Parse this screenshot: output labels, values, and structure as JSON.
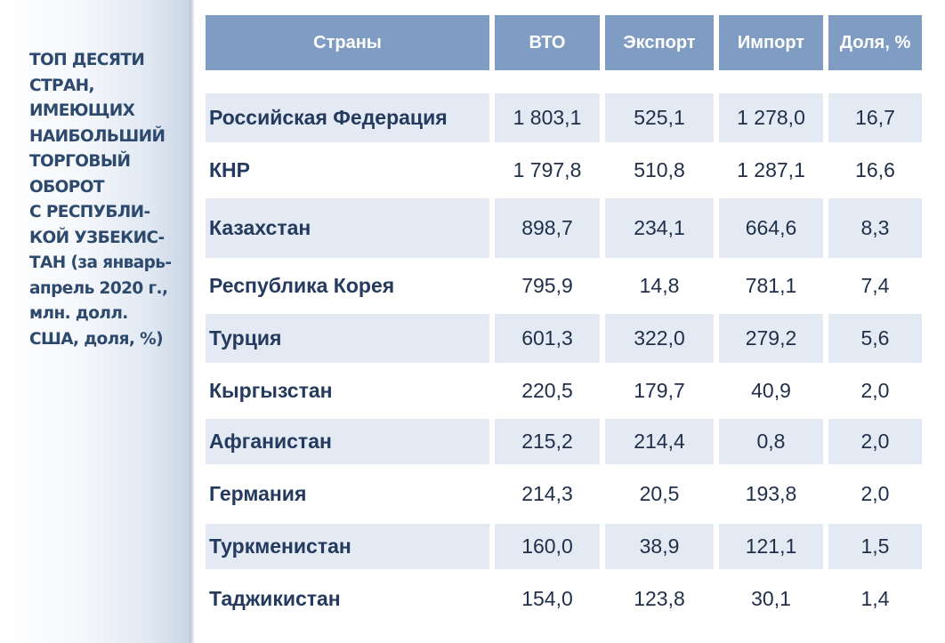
{
  "sidebar": {
    "title": "ТОП ДЕСЯТИ\nСТРАН,\nИМЕЮЩИХ\nНАИБОЛЬШИЙ\nТОРГОВЫЙ\nОБОРОТ\nС РЕСПУБЛИ-\nКОЙ УЗБЕКИС-\nТАН (за январь-\nапрель 2020 г.,\nмлн. долл.\nСША, доля, %)"
  },
  "table": {
    "headers": [
      "Страны",
      "ВТО",
      "Экспорт",
      "Импорт",
      "Доля, %"
    ],
    "rows": [
      {
        "country": "Российская Федерация",
        "vto": "1 803,1",
        "export": "525,1",
        "import": "1 278,0",
        "share": "16,7"
      },
      {
        "country": "КНР",
        "vto": "1 797,8",
        "export": "510,8",
        "import": "1 287,1",
        "share": "16,6"
      },
      {
        "country": "Казахстан",
        "vto": "898,7",
        "export": "234,1",
        "import": "664,6",
        "share": "8,3"
      },
      {
        "country": "Республика Корея",
        "vto": "795,9",
        "export": "14,8",
        "import": "781,1",
        "share": "7,4"
      },
      {
        "country": "Турция",
        "vto": "601,3",
        "export": "322,0",
        "import": "279,2",
        "share": "5,6"
      },
      {
        "country": "Кыргызстан",
        "vto": "220,5",
        "export": "179,7",
        "import": "40,9",
        "share": "2,0"
      },
      {
        "country": "Афганистан",
        "vto": "215,2",
        "export": "214,4",
        "import": "0,8",
        "share": "2,0"
      },
      {
        "country": "Германия",
        "vto": "214,3",
        "export": "20,5",
        "import": "193,8",
        "share": "2,0"
      },
      {
        "country": "Туркменистан",
        "vto": "160,0",
        "export": "38,9",
        "import": "121,1",
        "share": "1,5"
      },
      {
        "country": "Таджикистан",
        "vto": "154,0",
        "export": "123,8",
        "import": "30,1",
        "share": "1,4"
      }
    ]
  }
}
